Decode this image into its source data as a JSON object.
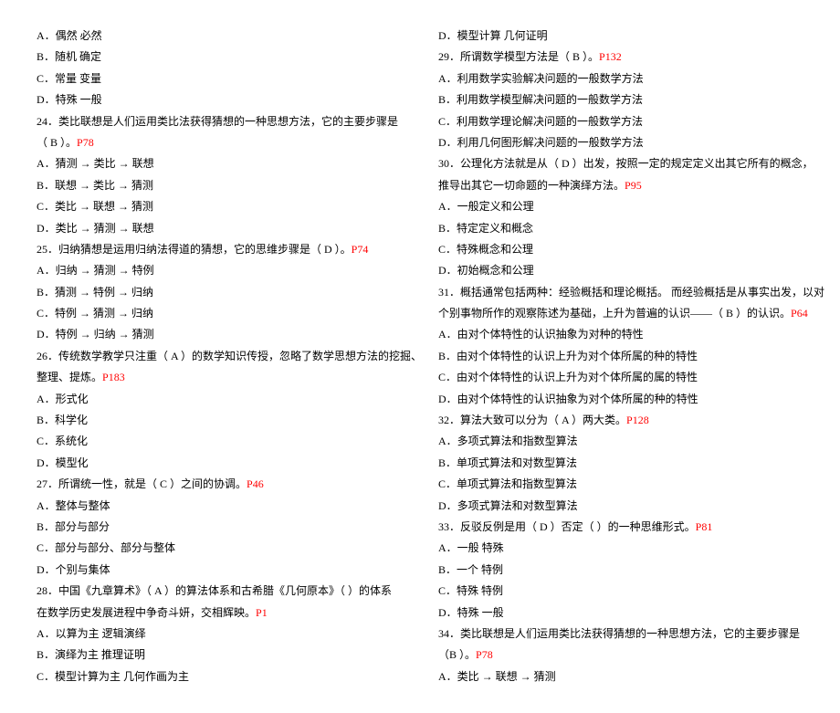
{
  "ref_color": "#ff0000",
  "text_color": "#000000",
  "background_color": "#ffffff",
  "font_size_pt": 12,
  "left": {
    "l1": "A．偶然   必然",
    "l2": "B．随机   确定",
    "l3": "C．常量   变量",
    "l4": "D．特殊   一般",
    "l5a": "24．类比联想是人们运用类比法获得猜想的一种思想方法，它的主要步骤是",
    "l5b": "（ B  ）。",
    "l5r": "P78",
    "l6": "A．猜测  → 类比 →  联想",
    "l7": "B．联想 →  类比 →  猜测",
    "l8": "C．类比 →  联想 →  猜测",
    "l9": "D．类比 →  猜测 →  联想",
    "l10a": "25．归纳猜想是运用归纳法得道的猜想，它的思维步骤是（ D  ）。",
    "l10r": "P74",
    "l11": "A．归纳 →  猜测 →  特例",
    "l12": "B．猜测 →  特例 →  归纳",
    "l13": "C．特例 →  猜测 →  归纳",
    "l14": "D．特例 →  归纳 →  猜测",
    "l15a": "26．传统数学教学只注重（  A  ）的数学知识传授，忽略了数学思想方法的挖掘、",
    "l15b": "整理、提炼。",
    "l15r": "P183",
    "l16": "A．形式化",
    "l17": "B．科学化",
    "l18": "C．系统化",
    "l19": "D．模型化",
    "l20a": "27．所谓统一性，就是（   C  ）之间的协调。",
    "l20r": "P46",
    "l21": "A．整体与整体",
    "l22": "B．部分与部分",
    "l23": "C．部分与部分、部分与整体",
    "l24": "D．个别与集体",
    "l25a": "28．中国《九章算术》（    A  ）的算法体系和古希腊《几何原本》（     ）的体系",
    "l25b": "在数学历史发展进程中争奇斗妍，交相辉映。",
    "l25r": "P1",
    "l26": "A．以算为主   逻辑演绎",
    "l27": "B．演绎为主   推理证明",
    "l28": "C．模型计算为主   几何作画为主"
  },
  "right": {
    "r1": "D．模型计算   几何证明",
    "r2a": "29．所谓数学模型方法是（ B  ）。",
    "r2r": "P132",
    "r3": "A．利用数学实验解决问题的一般数学方法",
    "r4": "B．利用数学模型解决问题的一般数学方法",
    "r5": "C．利用数学理论解决问题的一般数学方法",
    "r6": "D．利用几何图形解决问题的一般数学方法",
    "r7a": "30．公理化方法就是从（ D  ）出发，按照一定的规定定义出其它所有的概念，",
    "r7b": "推导出其它一切命题的一种演绎方法。",
    "r7r": "P95",
    "r8": "A．一般定义和公理",
    "r9": "B．特定定义和概念",
    "r10": "C．特殊概念和公理",
    "r11": "D．初始概念和公理",
    "r12a": "31．概括通常包括两种：经验概括和理论概括。 而经验概括是从事实出发，以对",
    "r12b": "个别事物所作的观察陈述为基础，上升为普遍的认识——（ B   ）的认识。",
    "r12r": "P64",
    "r13": "A．由对个体特性的认识抽象为对种的特性",
    "r14": "B．由对个体特性的认识上升为对个体所属的种的特性",
    "r15": "C．由对个体特性的认识上升为对个体所属的属的特性",
    "r16": "D．由对个体特性的认识抽象为对个体所属的种的特性",
    "r17a": "32．算法大致可以分为（ A  ）两大类。",
    "r17r": "P128",
    "r18": "A．多项式算法和指数型算法",
    "r19": "B．单项式算法和对数型算法",
    "r20": "C．单项式算法和指数型算法",
    "r21": "D．多项式算法和对数型算法",
    "r22a": "33．反驳反例是用（  D ）否定（      ）的一种思维形式。",
    "r22r": "P81",
    "r23": "A．一般     特殊",
    "r24": "B．一个     特例",
    "r25": "C．特殊     特例",
    "r26": "D．特殊     一般",
    "r27a": "34．类比联想是人们运用类比法获得猜想的一种思想方法，它的主要步骤是",
    "r27b": "（B   ）。",
    "r27r": "P78",
    "r28": "A．类比 → 联想  → 猜测"
  }
}
